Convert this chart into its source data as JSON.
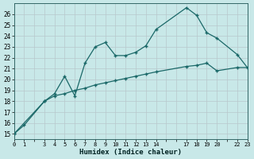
{
  "xlabel": "Humidex (Indice chaleur)",
  "background_color": "#c8e8e8",
  "grid_color": "#b8c8cc",
  "line_color": "#1a6868",
  "line1_x": [
    0,
    1,
    3,
    4,
    5,
    6,
    7,
    8,
    9,
    10,
    11,
    12,
    13,
    14,
    17,
    18,
    19,
    20,
    22,
    23
  ],
  "line1_y": [
    15.0,
    15.8,
    18.0,
    18.7,
    20.3,
    18.5,
    21.5,
    23.0,
    23.4,
    22.2,
    22.2,
    22.5,
    23.1,
    24.6,
    26.6,
    25.9,
    24.3,
    23.8,
    22.3,
    21.1
  ],
  "line2_x": [
    0,
    3,
    4,
    5,
    6,
    7,
    8,
    9,
    10,
    11,
    12,
    13,
    14,
    17,
    18,
    19,
    20,
    22,
    23
  ],
  "line2_y": [
    15.0,
    18.0,
    18.5,
    18.7,
    19.0,
    19.2,
    19.5,
    19.7,
    19.9,
    20.1,
    20.3,
    20.5,
    20.7,
    21.2,
    21.3,
    21.5,
    20.8,
    21.1,
    21.1
  ],
  "all_xticks": [
    0,
    1,
    2,
    3,
    4,
    5,
    6,
    7,
    8,
    9,
    10,
    11,
    12,
    13,
    14,
    15,
    16,
    17,
    18,
    19,
    20,
    21,
    22,
    23
  ],
  "labeled_xticks": [
    0,
    1,
    3,
    4,
    5,
    6,
    7,
    8,
    9,
    10,
    11,
    12,
    13,
    14,
    17,
    18,
    19,
    20,
    22,
    23
  ],
  "xlim": [
    0,
    23
  ],
  "ylim": [
    14.5,
    27.0
  ],
  "yticks": [
    15,
    16,
    17,
    18,
    19,
    20,
    21,
    22,
    23,
    24,
    25,
    26
  ]
}
